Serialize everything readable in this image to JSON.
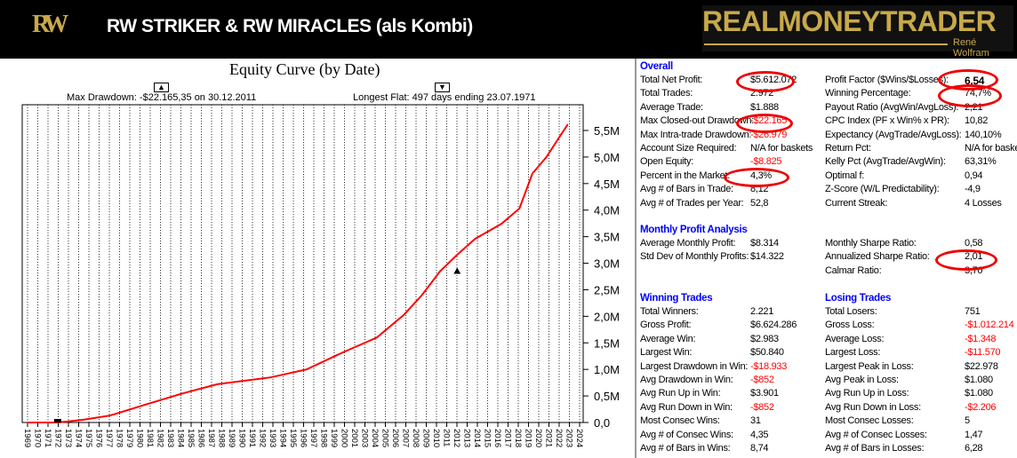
{
  "header": {
    "logo": "RW",
    "title": "RW STRIKER & RW MIRACLES (als Kombi)",
    "brand": "REALMONEYTRADER",
    "brand_sub": "René Wolfram"
  },
  "chart_data": {
    "type": "line",
    "title": "Equity Curve (by Date)",
    "annotations": {
      "max_drawdown": "Max Drawdown: -$22.165,35 on 30.12.2011",
      "longest_flat": "Longest Flat: 497 days ending 23.07.1971"
    },
    "yticks": [
      "0,0",
      "0,5M",
      "1,0M",
      "1,5M",
      "2,0M",
      "2,5M",
      "3,0M",
      "3,5M",
      "4,0M",
      "4,5M",
      "5,0M",
      "5,5M"
    ],
    "ylim": [
      0,
      5.5
    ],
    "xticks": [
      "1969",
      "1970",
      "1971",
      "1972",
      "1973",
      "1974",
      "1975",
      "1976",
      "1977",
      "1978",
      "1979",
      "1980",
      "1981",
      "1982",
      "1983",
      "1984",
      "1985",
      "1986",
      "1987",
      "1988",
      "1989",
      "1990",
      "1991",
      "1992",
      "1993",
      "1994",
      "1995",
      "1996",
      "1997",
      "1998",
      "1999",
      "2000",
      "2001",
      "2003",
      "2004",
      "2005",
      "2006",
      "2007",
      "2008",
      "2009",
      "2010",
      "2011",
      "2012",
      "2013",
      "2014",
      "2015",
      "2016",
      "2017",
      "2018",
      "2019",
      "2020",
      "2021",
      "2022",
      "2023",
      "2024"
    ],
    "series": [
      {
        "name": "Equity",
        "color": "#ff0000",
        "x": [
          1969,
          1972,
          1974.5,
          1977.2,
          1980.8,
          1984.3,
          1987.9,
          1993.2,
          1996.8,
          2000.3,
          2003.8,
          2006.5,
          2008.3,
          2010.1,
          2011.8,
          2013.6,
          2016.2,
          2018,
          2019.3,
          2020.7,
          2022,
          2022.8
        ],
        "y": [
          0,
          0,
          0.05,
          0.13,
          0.34,
          0.54,
          0.72,
          0.85,
          1.0,
          1.31,
          1.6,
          2.03,
          2.4,
          2.85,
          3.16,
          3.46,
          3.74,
          4.03,
          4.69,
          5.0,
          5.38,
          5.61
        ]
      }
    ]
  },
  "stats": {
    "overall": {
      "title": "Overall",
      "left": [
        [
          "Total Net Profit:",
          "$5.612.072",
          ""
        ],
        [
          "Total Trades:",
          "2.972",
          ""
        ],
        [
          "Average Trade:",
          "$1.888",
          ""
        ],
        [
          "Max Closed-out Drawdown:",
          "-$22.165",
          "neg"
        ],
        [
          "Max Intra-trade Drawdown:",
          "-$26.979",
          "neg"
        ],
        [
          "Account Size Required:",
          "N/A for baskets",
          ""
        ],
        [
          "Open Equity:",
          "-$8.825",
          "neg"
        ],
        [
          "Percent in the Market:",
          "4,3%",
          ""
        ],
        [
          "Avg # of Bars in Trade:",
          "8,12",
          ""
        ],
        [
          "Avg # of Trades per Year:",
          "52,8",
          ""
        ]
      ],
      "right": [
        [
          "Profit Factor ($Wins/$Losses):",
          "6,54",
          "bold"
        ],
        [
          "Winning Percentage:",
          "74,7%",
          ""
        ],
        [
          "Payout Ratio (AvgWin/AvgLoss):",
          "2,21",
          ""
        ],
        [
          "CPC Index (PF x Win% x PR):",
          "10,82",
          ""
        ],
        [
          "Expectancy (AvgTrade/AvgLoss):",
          "140,10%",
          ""
        ],
        [
          "Return Pct:",
          "N/A for baskets",
          ""
        ],
        [
          "Kelly Pct (AvgTrade/AvgWin):",
          "63,31%",
          ""
        ],
        [
          "Optimal f:",
          "0,94",
          ""
        ],
        [
          "Z-Score (W/L Predictability):",
          "-4,9",
          ""
        ],
        [
          "Current Streak:",
          "4 Losses",
          ""
        ]
      ]
    },
    "monthly": {
      "title": "Monthly Profit Analysis",
      "left": [
        [
          "Average Monthly Profit:",
          "$8.314",
          ""
        ],
        [
          "Std Dev of Monthly Profits:",
          "$14.322",
          ""
        ]
      ],
      "right": [
        [
          "Monthly Sharpe Ratio:",
          "0,58",
          ""
        ],
        [
          "Annualized Sharpe Ratio:",
          "2,01",
          ""
        ],
        [
          "Calmar Ratio:",
          "3,70",
          ""
        ]
      ]
    },
    "winning": {
      "title": "Winning Trades",
      "rows": [
        [
          "Total Winners:",
          "2.221",
          ""
        ],
        [
          "Gross Profit:",
          "$6.624.286",
          ""
        ],
        [
          "Average Win:",
          "$2.983",
          ""
        ],
        [
          "Largest Win:",
          "$50.840",
          ""
        ],
        [
          "Largest Drawdown in Win:",
          "-$18.933",
          "neg"
        ],
        [
          "Avg Drawdown in Win:",
          "-$852",
          "neg"
        ],
        [
          "Avg Run Up in Win:",
          "$3.901",
          ""
        ],
        [
          "Avg Run Down in Win:",
          "-$852",
          "neg"
        ],
        [
          "Most Consec Wins:",
          "31",
          ""
        ],
        [
          "Avg # of Consec Wins:",
          "4,35",
          ""
        ],
        [
          "Avg # of Bars in Wins:",
          "8,74",
          ""
        ]
      ]
    },
    "losing": {
      "title": "Losing Trades",
      "rows": [
        [
          "Total Losers:",
          "751",
          ""
        ],
        [
          "Gross Loss:",
          "-$1.012.214",
          "neg"
        ],
        [
          "Average Loss:",
          "-$1.348",
          "neg"
        ],
        [
          "Largest Loss:",
          "-$11.570",
          "neg"
        ],
        [
          "Largest Peak in Loss:",
          "$22.978",
          ""
        ],
        [
          "Avg Peak in Loss:",
          "$1.080",
          ""
        ],
        [
          "Avg Run Up in Loss:",
          "$1.080",
          ""
        ],
        [
          "Avg Run Down in Loss:",
          "-$2.206",
          "neg"
        ],
        [
          "Most Consec Losses:",
          "5",
          ""
        ],
        [
          "Avg # of Consec Losses:",
          "1,47",
          ""
        ],
        [
          "Avg # of Bars in Losses:",
          "6,28",
          ""
        ]
      ]
    }
  }
}
